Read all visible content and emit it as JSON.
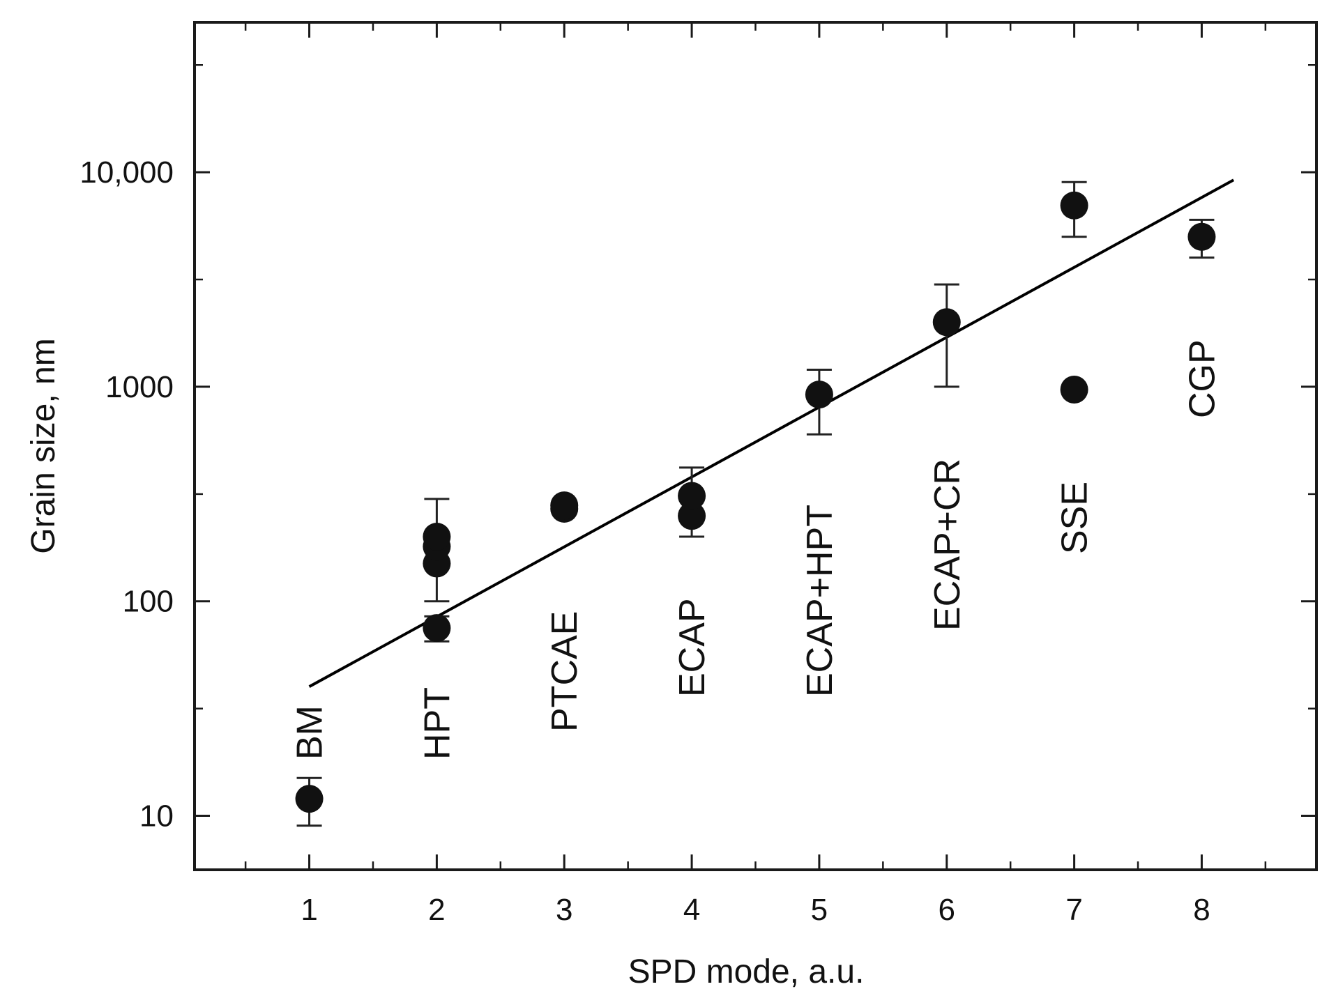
{
  "chart_data": {
    "type": "scatter",
    "title": "",
    "xlabel": "SPD mode, a.u.",
    "ylabel": "Grain size, nm",
    "xlim": [
      0.1,
      8.9
    ],
    "ylim": [
      5.6,
      50000
    ],
    "yscale": "log",
    "grid": false,
    "legend": "none",
    "x_ticks": [
      {
        "value": 1,
        "label": "1"
      },
      {
        "value": 2,
        "label": "2"
      },
      {
        "value": 3,
        "label": "3"
      },
      {
        "value": 4,
        "label": "4"
      },
      {
        "value": 5,
        "label": "5"
      },
      {
        "value": 6,
        "label": "6"
      },
      {
        "value": 7,
        "label": "7"
      },
      {
        "value": 8,
        "label": "8"
      }
    ],
    "y_ticks": [
      {
        "value": 10,
        "label": "10"
      },
      {
        "value": 100,
        "label": "100"
      },
      {
        "value": 1000,
        "label": "1000"
      },
      {
        "value": 10000,
        "label": "10,000"
      }
    ],
    "points": [
      {
        "x": 1,
        "y": 12
      },
      {
        "x": 2,
        "y": 75
      },
      {
        "x": 2,
        "y": 150
      },
      {
        "x": 2,
        "y": 180
      },
      {
        "x": 2,
        "y": 200
      },
      {
        "x": 3,
        "y": 270
      },
      {
        "x": 3,
        "y": 280
      },
      {
        "x": 4,
        "y": 250
      },
      {
        "x": 4,
        "y": 310
      },
      {
        "x": 5,
        "y": 920
      },
      {
        "x": 6,
        "y": 2000
      },
      {
        "x": 7,
        "y": 7000
      },
      {
        "x": 7,
        "y": 970
      },
      {
        "x": 8,
        "y": 5000
      }
    ],
    "error_bars": [
      {
        "x": 1,
        "low": 9,
        "high": 15
      },
      {
        "x": 2,
        "low": 100,
        "high": 300
      },
      {
        "x": 2,
        "low": 65,
        "high": 85
      },
      {
        "x": 4,
        "low": 200,
        "high": 420
      },
      {
        "x": 5,
        "low": 600,
        "high": 1200
      },
      {
        "x": 6,
        "low": 1000,
        "high": 3000
      },
      {
        "x": 7,
        "low": 5000,
        "high": 9000
      },
      {
        "x": 8,
        "low": 4000,
        "high": 6000
      }
    ],
    "fit_line": {
      "x": [
        1,
        8.25
      ],
      "y": [
        40,
        9200
      ]
    },
    "mode_labels": [
      {
        "x": 1,
        "text": "BM"
      },
      {
        "x": 2,
        "text": "HPT"
      },
      {
        "x": 3,
        "text": "PTCAE"
      },
      {
        "x": 4,
        "text": "ECAP"
      },
      {
        "x": 5,
        "text": "ECAP+HPT"
      },
      {
        "x": 6,
        "text": "ECAP+CR"
      },
      {
        "x": 7,
        "text": "SSE"
      },
      {
        "x": 8,
        "text": "CGP"
      }
    ],
    "colors": {
      "points": "#111111",
      "line": "#000000",
      "axes": "#1a1a1a"
    }
  }
}
